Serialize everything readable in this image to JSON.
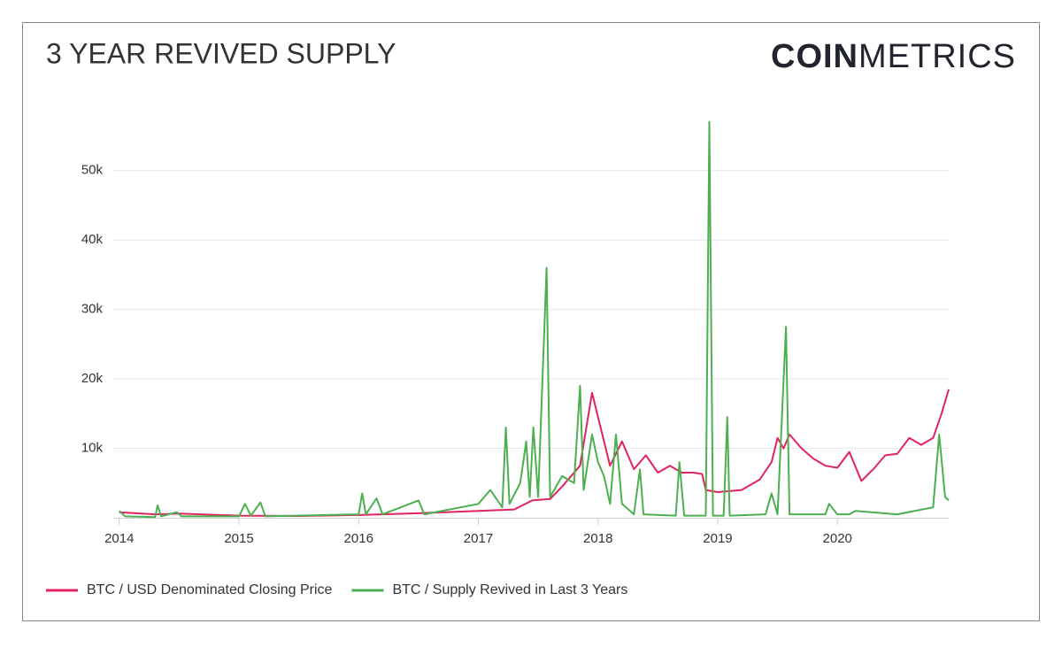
{
  "chart_data": {
    "type": "line",
    "title": "3 YEAR REVIVED SUPPLY",
    "logo": {
      "bold": "COIN",
      "light": "METRICS"
    },
    "xlim": [
      2013.95,
      2020.93
    ],
    "xticks": [
      2014,
      2015,
      2016,
      2017,
      2018,
      2019,
      2020
    ],
    "ylim": [
      0,
      58000
    ],
    "yticks": [
      {
        "value": 10000,
        "label": "10k"
      },
      {
        "value": 20000,
        "label": "20k"
      },
      {
        "value": 30000,
        "label": "30k"
      },
      {
        "value": 40000,
        "label": "40k"
      },
      {
        "value": 50000,
        "label": "50k"
      }
    ],
    "grid": true,
    "legend": "bottom-left",
    "series": [
      {
        "name": "BTC / USD Denominated Closing Price",
        "color": "#e0245e",
        "x": [
          2014.0,
          2014.3,
          2014.5,
          2015.0,
          2015.5,
          2016.0,
          2016.5,
          2017.0,
          2017.3,
          2017.45,
          2017.6,
          2017.7,
          2017.85,
          2017.95,
          2018.05,
          2018.1,
          2018.2,
          2018.3,
          2018.4,
          2018.5,
          2018.6,
          2018.7,
          2018.8,
          2018.87,
          2018.9,
          2019.0,
          2019.2,
          2019.35,
          2019.45,
          2019.5,
          2019.55,
          2019.6,
          2019.7,
          2019.8,
          2019.9,
          2020.0,
          2020.1,
          2020.2,
          2020.3,
          2020.4,
          2020.5,
          2020.6,
          2020.7,
          2020.8,
          2020.87,
          2020.93
        ],
        "values": [
          800,
          500,
          600,
          300,
          250,
          400,
          650,
          1000,
          1200,
          2500,
          2700,
          4500,
          7500,
          18000,
          11000,
          7500,
          11000,
          7000,
          9000,
          6500,
          7500,
          6500,
          6500,
          6300,
          4000,
          3700,
          4000,
          5500,
          8000,
          11500,
          10000,
          12000,
          10000,
          8500,
          7500,
          7200,
          9500,
          5300,
          7000,
          9000,
          9200,
          11500,
          10500,
          11500,
          15000,
          18500
        ]
      },
      {
        "name": "BTC / Supply Revived in Last 3 Years",
        "color": "#4caf50",
        "x": [
          2014.0,
          2014.05,
          2014.3,
          2014.32,
          2014.35,
          2014.48,
          2014.52,
          2015.0,
          2015.05,
          2015.1,
          2015.18,
          2015.22,
          2016.0,
          2016.03,
          2016.06,
          2016.15,
          2016.2,
          2016.5,
          2016.55,
          2017.0,
          2017.1,
          2017.2,
          2017.23,
          2017.26,
          2017.35,
          2017.4,
          2017.43,
          2017.46,
          2017.5,
          2017.57,
          2017.6,
          2017.7,
          2017.8,
          2017.85,
          2017.88,
          2017.95,
          2018.0,
          2018.05,
          2018.1,
          2018.15,
          2018.2,
          2018.3,
          2018.35,
          2018.38,
          2018.65,
          2018.68,
          2018.72,
          2018.9,
          2018.93,
          2018.96,
          2019.05,
          2019.08,
          2019.1,
          2019.4,
          2019.45,
          2019.5,
          2019.57,
          2019.6,
          2019.9,
          2019.93,
          2020.0,
          2020.1,
          2020.15,
          2020.5,
          2020.8,
          2020.85,
          2020.9,
          2020.93
        ],
        "values": [
          1000,
          200,
          100,
          1800,
          200,
          800,
          200,
          200,
          2000,
          300,
          2200,
          200,
          500,
          3500,
          500,
          2800,
          500,
          2500,
          500,
          2000,
          4000,
          1500,
          13000,
          2000,
          5000,
          11000,
          3000,
          13000,
          3000,
          36000,
          3000,
          6000,
          5000,
          19000,
          4000,
          12000,
          8000,
          6000,
          2000,
          12000,
          2000,
          500,
          7000,
          500,
          300,
          8000,
          300,
          300,
          57000,
          300,
          300,
          14500,
          300,
          500,
          3500,
          500,
          27500,
          500,
          500,
          2000,
          500,
          500,
          1000,
          500,
          1500,
          12000,
          3000,
          2500
        ]
      }
    ]
  }
}
